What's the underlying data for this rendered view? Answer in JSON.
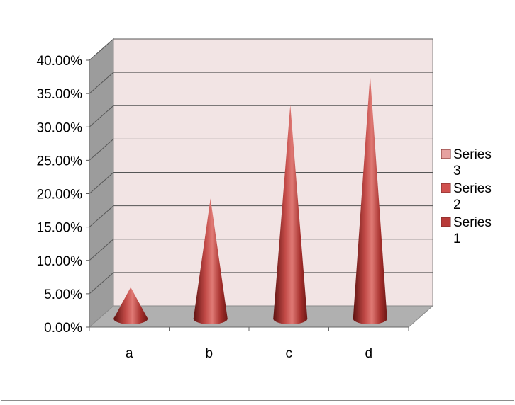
{
  "chart_data": {
    "type": "bar",
    "bar_shape": "cone-3d",
    "categories": [
      "a",
      "b",
      "c",
      "d"
    ],
    "series": [
      {
        "name": "Series 1",
        "color": "#b83a38",
        "values": [
          0.047,
          0.18,
          0.32,
          0.365
        ]
      },
      {
        "name": "Series 2",
        "color": "#d0504e",
        "values": [
          0,
          0,
          0,
          0
        ]
      },
      {
        "name": "Series 3",
        "color": "#e6a1a0",
        "values": [
          0,
          0,
          0,
          0
        ]
      }
    ],
    "y_tick_labels": [
      "0.00%",
      "5.00%",
      "10.00%",
      "15.00%",
      "20.00%",
      "25.00%",
      "30.00%",
      "35.00%",
      "40.00%"
    ],
    "ylim": [
      0,
      0.4
    ],
    "grid": true,
    "legend_position": "right",
    "legend_order": [
      "Series 3",
      "Series 2",
      "Series 1"
    ],
    "legend_lines": {
      "Series 3": [
        "Series",
        "3"
      ],
      "Series 2": [
        "Series",
        "2"
      ],
      "Series 1": [
        "Series",
        "1"
      ]
    },
    "colors": {
      "back_wall": "#f2e4e4",
      "side_wall": "#9c9c9c",
      "floor": "#b0b0b0",
      "gridline": "#555555",
      "cone": "#b83a38"
    }
  }
}
